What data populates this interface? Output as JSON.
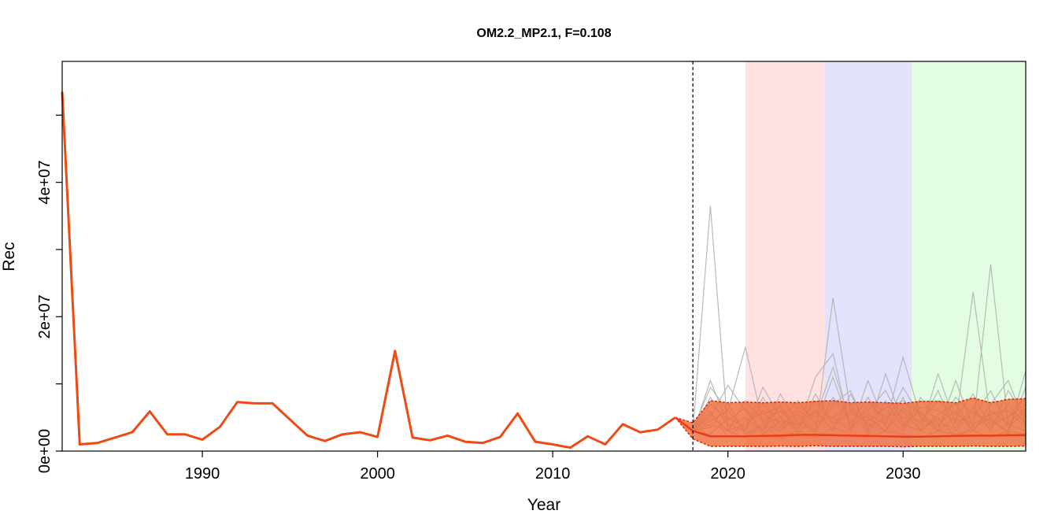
{
  "chart_data": {
    "type": "line",
    "title": "OM2.2_MP2.1, F=0.108",
    "xlabel": "Year",
    "ylabel": "Rec",
    "xlim": [
      1982,
      2037
    ],
    "ylim": [
      0,
      58000000
    ],
    "x_ticks": [
      1990,
      2000,
      2010,
      2020,
      2030
    ],
    "x_tick_labels": [
      "1990",
      "2000",
      "2010",
      "2020",
      "2030"
    ],
    "y_ticks": [
      0,
      10000000,
      20000000,
      30000000,
      40000000,
      50000000
    ],
    "y_tick_labels": [
      "0e+00",
      "",
      "2e+07",
      "",
      "4e+07",
      ""
    ],
    "projection_start": 2018,
    "shaded_periods": [
      {
        "from": 2021,
        "to": 2025.5,
        "color": "#ffe1e1"
      },
      {
        "from": 2025.5,
        "to": 2030.5,
        "color": "#e3e3fd"
      },
      {
        "from": 2030.5,
        "to": 2037,
        "color": "#e3fde3"
      }
    ],
    "historical": {
      "color": "#f04a14",
      "x": [
        1982,
        1983,
        1984,
        1985,
        1986,
        1987,
        1988,
        1989,
        1990,
        1991,
        1992,
        1993,
        1994,
        1995,
        1996,
        1997,
        1998,
        1999,
        2000,
        2001,
        2002,
        2003,
        2004,
        2005,
        2006,
        2007,
        2008,
        2009,
        2010,
        2011,
        2012,
        2013,
        2014,
        2015,
        2016,
        2017
      ],
      "y": [
        53500000,
        1000000,
        1200000,
        2000000,
        2800000,
        5900000,
        2500000,
        2500000,
        1700000,
        3600000,
        7300000,
        7100000,
        7100000,
        4700000,
        2300000,
        1500000,
        2500000,
        2800000,
        2100000,
        14900000,
        2000000,
        1600000,
        2300000,
        1400000,
        1200000,
        2100000,
        5600000,
        1400000,
        1000000,
        500000,
        2200000,
        1000000,
        4000000,
        2800000,
        3200000,
        5000000
      ]
    },
    "projection": {
      "x": [
        2017,
        2018,
        2019,
        2020,
        2021,
        2022,
        2023,
        2024,
        2025,
        2026,
        2027,
        2028,
        2029,
        2030,
        2031,
        2032,
        2033,
        2034,
        2035,
        2036,
        2037
      ],
      "median": [
        5000000,
        3000000,
        2200000,
        2200000,
        2200000,
        2250000,
        2300000,
        2400000,
        2400000,
        2350000,
        2300000,
        2250000,
        2200000,
        2150000,
        2150000,
        2200000,
        2250000,
        2300000,
        2300000,
        2350000,
        2350000
      ],
      "upper": [
        5000000,
        4200000,
        7500000,
        7200000,
        7300000,
        7200000,
        7300000,
        7200000,
        7400000,
        7500000,
        7200000,
        7300000,
        7200000,
        7100000,
        7400000,
        7400000,
        7200000,
        7900000,
        7200000,
        7700000,
        7800000
      ],
      "lower": [
        5000000,
        1800000,
        700000,
        700000,
        700000,
        700000,
        750000,
        700000,
        800000,
        700000,
        700000,
        700000,
        700000,
        650000,
        700000,
        700000,
        700000,
        750000,
        700000,
        700000,
        750000
      ],
      "band_color": "#ef6a3a",
      "median_color": "#ef3b14"
    },
    "simulations": {
      "color": "#b2b2b2",
      "x": [
        2018,
        2019,
        2020,
        2021,
        2022,
        2023,
        2024,
        2025,
        2026,
        2027,
        2028,
        2029,
        2030,
        2031,
        2032,
        2033,
        2034,
        2035,
        2036,
        2037
      ],
      "runs": [
        [
          3000000,
          36500000,
          3000000,
          2000000,
          4000000,
          1800000,
          3000000,
          2000000,
          3500000,
          2500000,
          2000000,
          3000000,
          2500000,
          2000000,
          3000000,
          2500000,
          3000000,
          2000000,
          3000000,
          2500000
        ],
        [
          3200000,
          9500000,
          6000000,
          15500000,
          4000000,
          3000000,
          5000000,
          2500000,
          22800000,
          6000000,
          4000000,
          3000000,
          8000000,
          3000000,
          5000000,
          2000000,
          3500000,
          27800000,
          4000000,
          3000000
        ],
        [
          2800000,
          10500000,
          4000000,
          3000000,
          9500000,
          5000000,
          3000000,
          11000000,
          14500000,
          3000000,
          10500000,
          4000000,
          14000000,
          5000000,
          3000000,
          10500000,
          3500000,
          5000000,
          2500000,
          12000000
        ],
        [
          3100000,
          5000000,
          9800000,
          6000000,
          3000000,
          8500000,
          4000000,
          3000000,
          7000000,
          9000000,
          3000000,
          11500000,
          4000000,
          3000000,
          11500000,
          4000000,
          23700000,
          4500000,
          3000000,
          9500000
        ],
        [
          2900000,
          4000000,
          3000000,
          4000000,
          6000000,
          3000000,
          6000000,
          4500000,
          5000000,
          3000000,
          7000000,
          5000000,
          3000000,
          8000000,
          4000000,
          6000000,
          3000000,
          7000000,
          10500000,
          4000000
        ],
        [
          3000000,
          8000000,
          3500000,
          5000000,
          3000000,
          7000000,
          3000000,
          8500000,
          4000000,
          6000000,
          5000000,
          3000000,
          6500000,
          4000000,
          9000000,
          3000000,
          6000000,
          4000000,
          5000000,
          8000000
        ],
        [
          3000000,
          2500000,
          5000000,
          3500000,
          7000000,
          4000000,
          5500000,
          3000000,
          8000000,
          4500000,
          6000000,
          9000000,
          4000000,
          6000000,
          3000000,
          5000000,
          8500000,
          3500000,
          7000000,
          4000000
        ],
        [
          3000000,
          6000000,
          2000000,
          4500000,
          5500000,
          6500000,
          2500000,
          6000000,
          3000000,
          8500000,
          3500000,
          5000000,
          6000000,
          3000000,
          5500000,
          7000000,
          3000000,
          6000000,
          4000000,
          6500000
        ],
        [
          3000000,
          3500000,
          7000000,
          2500000,
          4000000,
          5000000,
          7500000,
          4000000,
          11000000,
          3500000,
          5500000,
          4000000,
          9500000,
          5000000,
          4000000,
          3500000,
          6500000,
          3000000,
          9000000,
          5000000
        ],
        [
          3000000,
          7000000,
          4500000,
          6500000,
          2500000,
          4500000,
          4000000,
          6000000,
          5000000,
          7000000,
          2500000,
          7500000,
          3500000,
          6500000,
          6000000,
          4500000,
          5000000,
          9000000,
          3500000,
          6000000
        ],
        [
          3000000,
          4500000,
          6000000,
          3000000,
          8000000,
          3500000,
          6500000,
          5000000,
          12500000,
          4000000,
          8000000,
          3500000,
          5000000,
          4500000,
          7500000,
          5500000,
          4000000,
          5500000,
          6000000,
          3500000
        ],
        [
          3000000,
          5500000,
          3000000,
          7500000,
          4500000,
          6000000,
          3500000,
          7500000,
          4000000,
          5500000,
          4500000,
          6500000,
          7500000,
          5500000,
          3500000,
          8000000,
          5500000,
          4500000,
          5000000,
          7000000
        ]
      ]
    }
  }
}
